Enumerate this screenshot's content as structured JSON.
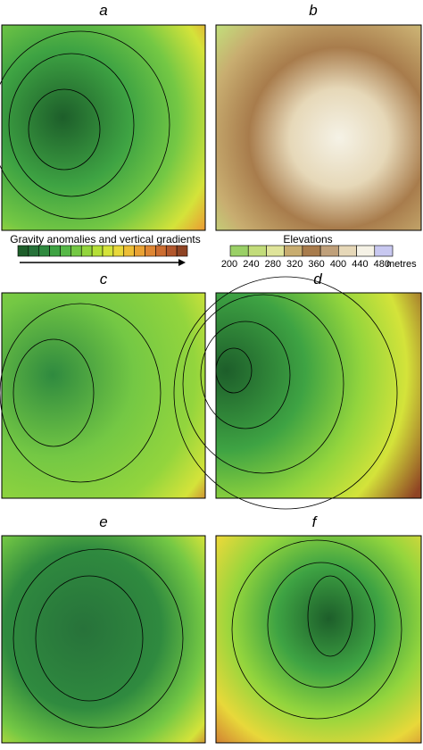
{
  "panels": [
    {
      "label": "a"
    },
    {
      "label": "b"
    },
    {
      "label": "c"
    },
    {
      "label": "d"
    },
    {
      "label": "e"
    },
    {
      "label": "f"
    }
  ],
  "gravity_legend": {
    "title": "Gravity anomalies and vertical gradients",
    "colors": [
      "#1d5e2a",
      "#27723a",
      "#2f8a3f",
      "#3ea343",
      "#56b847",
      "#74c844",
      "#93d53d",
      "#b5df37",
      "#d4e33a",
      "#e8d83a",
      "#edbe35",
      "#e9a233",
      "#de8633",
      "#cc6d30",
      "#b2572c",
      "#8f4424"
    ]
  },
  "elevation_legend": {
    "title": "Elevations",
    "colors": [
      "#9ad066",
      "#c2dc7a",
      "#dfe49a",
      "#c8ad70",
      "#a87c4c",
      "#bfa07a",
      "#e6d8b8",
      "#f5f2e6",
      "#c8c8f0"
    ],
    "ticks": [
      200,
      240,
      280,
      320,
      360,
      400,
      440,
      480
    ],
    "unit": "metres"
  }
}
